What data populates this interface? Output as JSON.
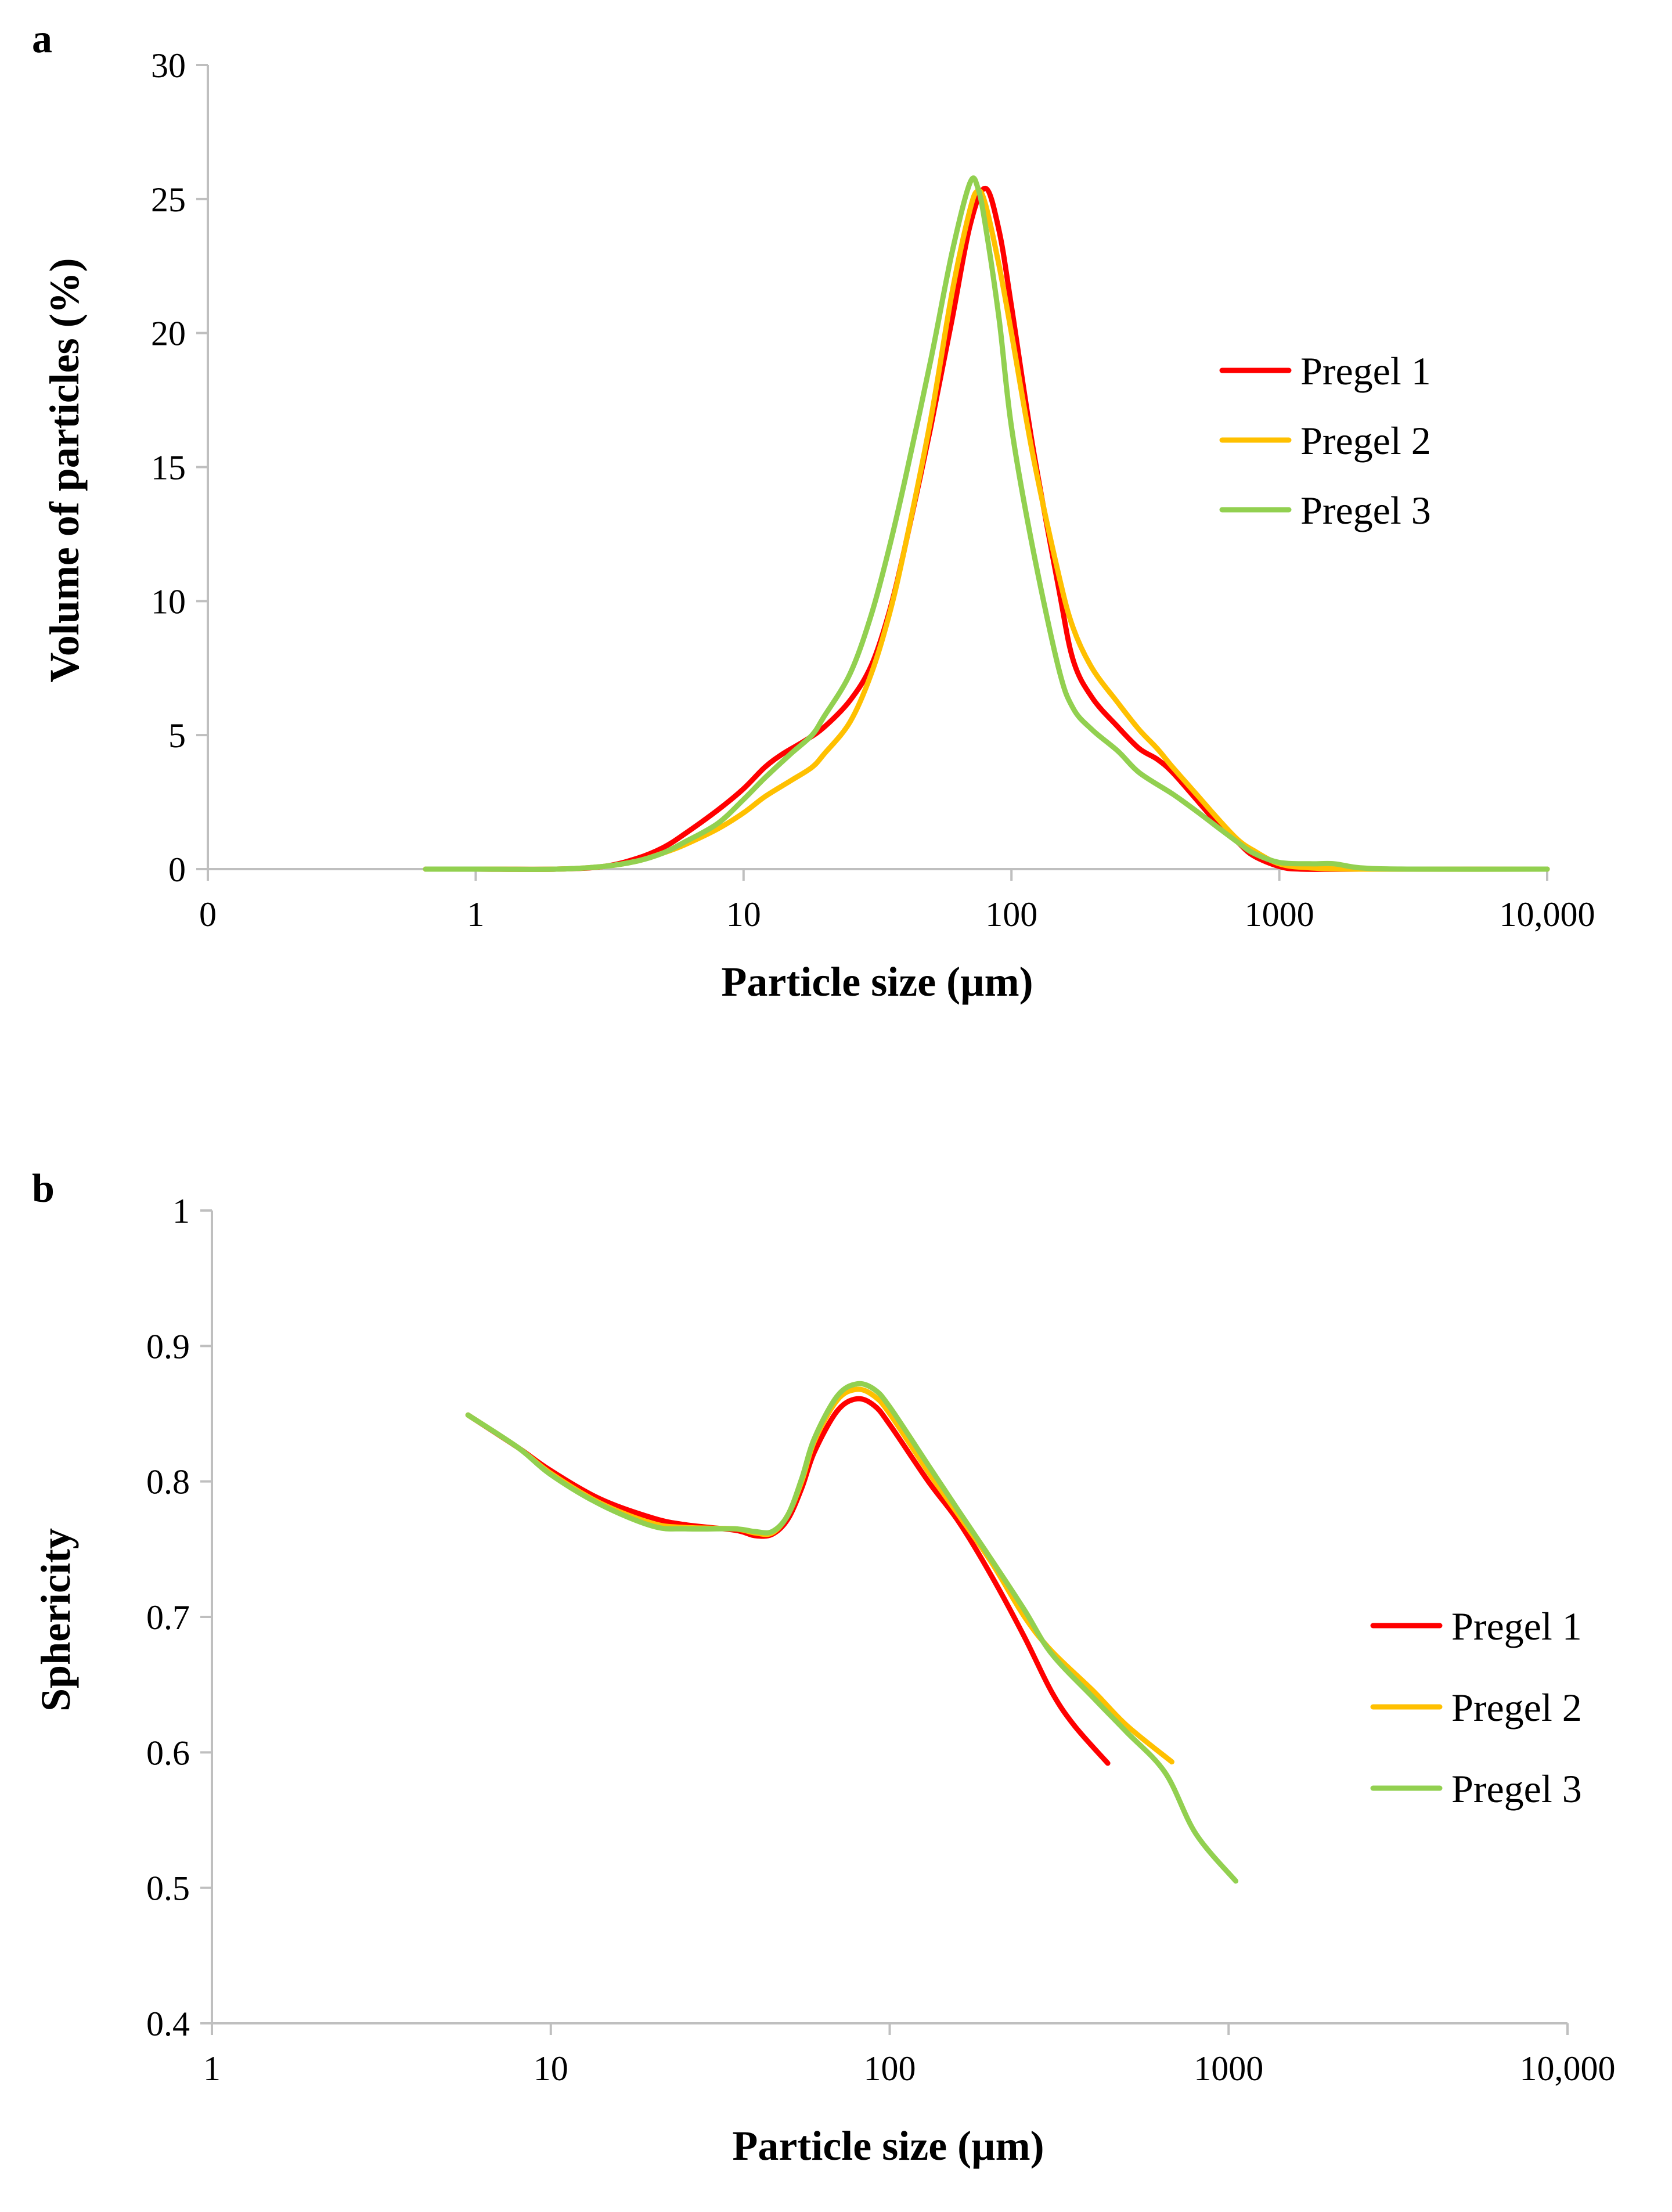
{
  "chart_data": [
    {
      "id": "panel-a",
      "type": "line",
      "panel_label": "a",
      "title": "",
      "xlabel": "Particle size (µm)",
      "ylabel": "Volume of particles (%)",
      "xscale": "log",
      "xlim": [
        0.1,
        10000
      ],
      "ylim": [
        0,
        30
      ],
      "x_ticks": [
        {
          "value": 0.1,
          "label": "0"
        },
        {
          "value": 1,
          "label": "1"
        },
        {
          "value": 10,
          "label": "10"
        },
        {
          "value": 100,
          "label": "100"
        },
        {
          "value": 1000,
          "label": "1000"
        },
        {
          "value": 10000,
          "label": "10,000"
        }
      ],
      "y_ticks": [
        {
          "value": 0,
          "label": "0"
        },
        {
          "value": 5,
          "label": "5"
        },
        {
          "value": 10,
          "label": "10"
        },
        {
          "value": 15,
          "label": "15"
        },
        {
          "value": 20,
          "label": "20"
        },
        {
          "value": 25,
          "label": "25"
        },
        {
          "value": 30,
          "label": "30"
        }
      ],
      "grid": false,
      "legend_position": "right",
      "series": [
        {
          "name": "Pregel 1",
          "color": "#ff0000",
          "points": [
            [
              0.65,
              0
            ],
            [
              1,
              0
            ],
            [
              2,
              0
            ],
            [
              3,
              0.1
            ],
            [
              4,
              0.4
            ],
            [
              5,
              0.8
            ],
            [
              6,
              1.3
            ],
            [
              8,
              2.2
            ],
            [
              10,
              3
            ],
            [
              12,
              3.8
            ],
            [
              14,
              4.3
            ],
            [
              17,
              4.8
            ],
            [
              20,
              5.3
            ],
            [
              25,
              6.3
            ],
            [
              30,
              7.6
            ],
            [
              35,
              9.6
            ],
            [
              40,
              12
            ],
            [
              50,
              16.5
            ],
            [
              60,
              20.5
            ],
            [
              70,
              24
            ],
            [
              80,
              25.4
            ],
            [
              90,
              23.8
            ],
            [
              100,
              21
            ],
            [
              120,
              15.8
            ],
            [
              150,
              10.5
            ],
            [
              170,
              7.8
            ],
            [
              200,
              6.4
            ],
            [
              250,
              5.3
            ],
            [
              300,
              4.5
            ],
            [
              350,
              4.1
            ],
            [
              400,
              3.6
            ],
            [
              500,
              2.5
            ],
            [
              600,
              1.6
            ],
            [
              700,
              1
            ],
            [
              800,
              0.5
            ],
            [
              1000,
              0.1
            ],
            [
              1200,
              0
            ],
            [
              2000,
              0
            ],
            [
              10000,
              0
            ]
          ]
        },
        {
          "name": "Pregel 2",
          "color": "#ffc000",
          "points": [
            [
              0.65,
              0
            ],
            [
              1,
              0
            ],
            [
              2,
              0
            ],
            [
              3,
              0.1
            ],
            [
              4,
              0.3
            ],
            [
              5,
              0.6
            ],
            [
              6,
              0.9
            ],
            [
              8,
              1.5
            ],
            [
              10,
              2.1
            ],
            [
              12,
              2.7
            ],
            [
              15,
              3.3
            ],
            [
              18,
              3.8
            ],
            [
              20,
              4.3
            ],
            [
              25,
              5.5
            ],
            [
              30,
              7.3
            ],
            [
              35,
              9.5
            ],
            [
              40,
              12
            ],
            [
              50,
              16.8
            ],
            [
              60,
              21.5
            ],
            [
              70,
              24.6
            ],
            [
              75,
              25.3
            ],
            [
              80,
              24.8
            ],
            [
              90,
              22.5
            ],
            [
              100,
              20
            ],
            [
              120,
              15.5
            ],
            [
              150,
              11
            ],
            [
              170,
              9
            ],
            [
              200,
              7.5
            ],
            [
              250,
              6.2
            ],
            [
              300,
              5.2
            ],
            [
              350,
              4.5
            ],
            [
              400,
              3.8
            ],
            [
              500,
              2.7
            ],
            [
              600,
              1.8
            ],
            [
              700,
              1.1
            ],
            [
              800,
              0.7
            ],
            [
              1000,
              0.2
            ],
            [
              1300,
              0.05
            ],
            [
              2000,
              0
            ],
            [
              10000,
              0
            ]
          ]
        },
        {
          "name": "Pregel 3",
          "color": "#92d050",
          "points": [
            [
              0.65,
              0
            ],
            [
              1,
              0
            ],
            [
              2,
              0
            ],
            [
              3,
              0.1
            ],
            [
              4,
              0.3
            ],
            [
              5,
              0.6
            ],
            [
              6,
              1
            ],
            [
              8,
              1.7
            ],
            [
              10,
              2.6
            ],
            [
              12,
              3.4
            ],
            [
              15,
              4.3
            ],
            [
              18,
              5
            ],
            [
              20,
              5.7
            ],
            [
              25,
              7.3
            ],
            [
              30,
              9.5
            ],
            [
              35,
              12
            ],
            [
              40,
              14.5
            ],
            [
              50,
              19
            ],
            [
              60,
              23
            ],
            [
              70,
              25.6
            ],
            [
              75,
              25.4
            ],
            [
              80,
              24
            ],
            [
              90,
              20.5
            ],
            [
              100,
              16.5
            ],
            [
              120,
              12
            ],
            [
              150,
              7.5
            ],
            [
              170,
              6
            ],
            [
              200,
              5.2
            ],
            [
              250,
              4.4
            ],
            [
              300,
              3.6
            ],
            [
              400,
              2.8
            ],
            [
              500,
              2.1
            ],
            [
              600,
              1.5
            ],
            [
              700,
              1
            ],
            [
              800,
              0.6
            ],
            [
              1000,
              0.25
            ],
            [
              1300,
              0.2
            ],
            [
              1600,
              0.2
            ],
            [
              2000,
              0.05
            ],
            [
              3000,
              0
            ],
            [
              10000,
              0
            ]
          ]
        }
      ]
    },
    {
      "id": "panel-b",
      "type": "line",
      "panel_label": "b",
      "title": "",
      "xlabel": "Particle size (µm)",
      "ylabel": "Sphericity",
      "xscale": "log",
      "xlim": [
        1,
        10000
      ],
      "ylim": [
        0.4,
        1
      ],
      "x_ticks": [
        {
          "value": 1,
          "label": "1"
        },
        {
          "value": 10,
          "label": "10"
        },
        {
          "value": 100,
          "label": "100"
        },
        {
          "value": 1000,
          "label": "1000"
        },
        {
          "value": 10000,
          "label": "10,000"
        }
      ],
      "y_ticks": [
        {
          "value": 0.4,
          "label": "0.4"
        },
        {
          "value": 0.5,
          "label": "0.5"
        },
        {
          "value": 0.6,
          "label": "0.6"
        },
        {
          "value": 0.7,
          "label": "0.7"
        },
        {
          "value": 0.8,
          "label": "0.8"
        },
        {
          "value": 0.9,
          "label": "0.9"
        },
        {
          "value": 1,
          "label": "1"
        }
      ],
      "grid": false,
      "legend_position": "right",
      "series": [
        {
          "name": "Pregel 1",
          "color": "#ff0000",
          "points": [
            [
              5.7,
              0.849
            ],
            [
              8,
              0.825
            ],
            [
              10,
              0.808
            ],
            [
              14,
              0.787
            ],
            [
              20,
              0.773
            ],
            [
              25,
              0.768
            ],
            [
              35,
              0.764
            ],
            [
              40,
              0.76
            ],
            [
              45,
              0.761
            ],
            [
              50,
              0.772
            ],
            [
              55,
              0.795
            ],
            [
              60,
              0.822
            ],
            [
              70,
              0.852
            ],
            [
              80,
              0.861
            ],
            [
              90,
              0.856
            ],
            [
              100,
              0.842
            ],
            [
              130,
              0.8
            ],
            [
              160,
              0.77
            ],
            [
              200,
              0.73
            ],
            [
              250,
              0.685
            ],
            [
              300,
              0.645
            ],
            [
              350,
              0.62
            ],
            [
              440,
              0.592
            ]
          ]
        },
        {
          "name": "Pregel 2",
          "color": "#ffc000",
          "points": [
            [
              5.7,
              0.849
            ],
            [
              8,
              0.825
            ],
            [
              10,
              0.806
            ],
            [
              14,
              0.784
            ],
            [
              20,
              0.769
            ],
            [
              25,
              0.766
            ],
            [
              35,
              0.765
            ],
            [
              40,
              0.762
            ],
            [
              45,
              0.762
            ],
            [
              50,
              0.775
            ],
            [
              55,
              0.8
            ],
            [
              60,
              0.83
            ],
            [
              70,
              0.86
            ],
            [
              80,
              0.868
            ],
            [
              90,
              0.863
            ],
            [
              100,
              0.85
            ],
            [
              130,
              0.807
            ],
            [
              160,
              0.775
            ],
            [
              200,
              0.74
            ],
            [
              250,
              0.7
            ],
            [
              300,
              0.675
            ],
            [
              400,
              0.645
            ],
            [
              500,
              0.62
            ],
            [
              680,
              0.593
            ]
          ]
        },
        {
          "name": "Pregel 3",
          "color": "#92d050",
          "points": [
            [
              5.7,
              0.849
            ],
            [
              8,
              0.825
            ],
            [
              10,
              0.805
            ],
            [
              14,
              0.783
            ],
            [
              20,
              0.767
            ],
            [
              25,
              0.765
            ],
            [
              35,
              0.765
            ],
            [
              40,
              0.763
            ],
            [
              45,
              0.763
            ],
            [
              50,
              0.775
            ],
            [
              55,
              0.802
            ],
            [
              60,
              0.832
            ],
            [
              70,
              0.863
            ],
            [
              80,
              0.872
            ],
            [
              90,
              0.868
            ],
            [
              100,
              0.855
            ],
            [
              130,
              0.812
            ],
            [
              160,
              0.778
            ],
            [
              200,
              0.742
            ],
            [
              250,
              0.705
            ],
            [
              300,
              0.673
            ],
            [
              400,
              0.64
            ],
            [
              500,
              0.615
            ],
            [
              650,
              0.585
            ],
            [
              800,
              0.54
            ],
            [
              1050,
              0.505
            ]
          ]
        }
      ]
    }
  ]
}
